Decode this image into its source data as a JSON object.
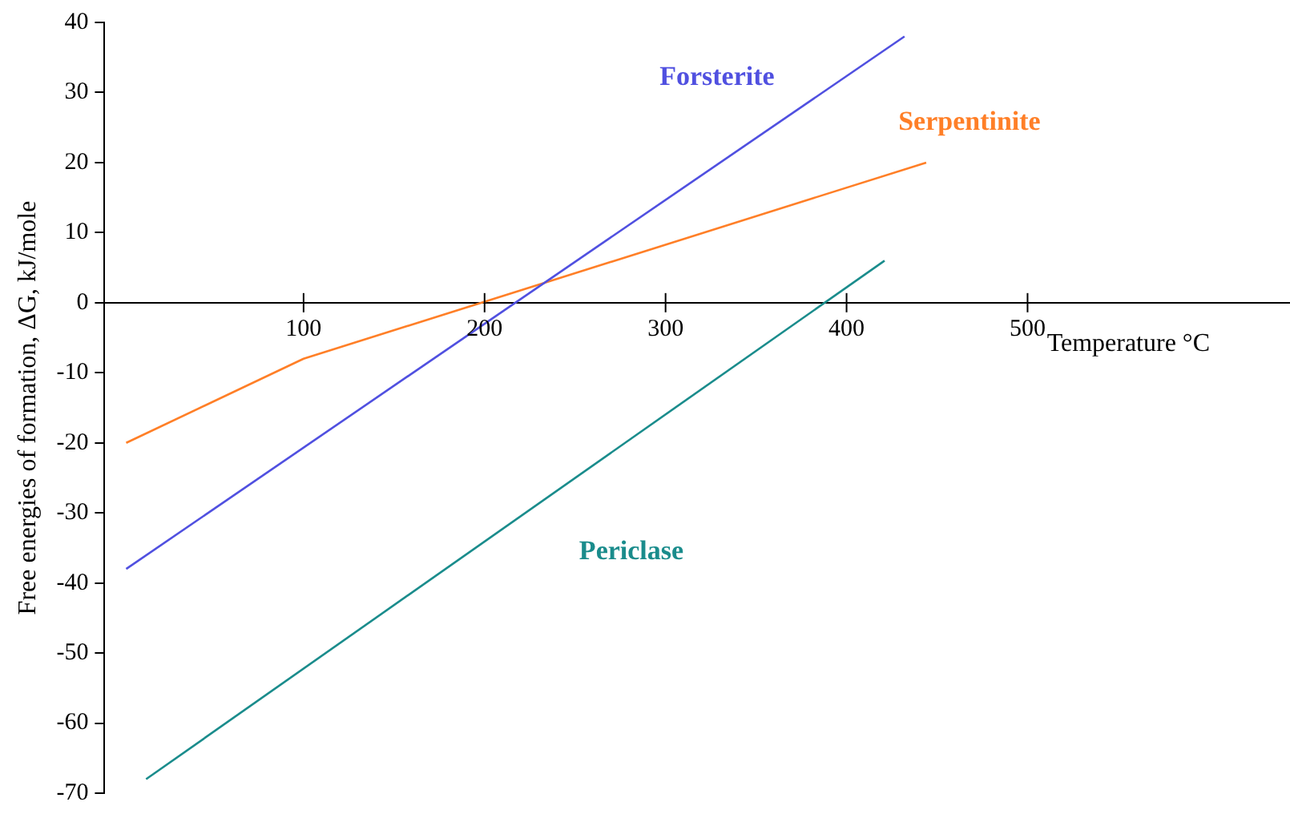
{
  "chart_data": {
    "type": "line",
    "xlabel": "Temperature °C",
    "ylabel": "Free energies of formation, ΔG, kJ/mole",
    "xlim": [
      -10,
      645
    ],
    "xticks": [
      100,
      200,
      300,
      400,
      500
    ],
    "ylim": [
      -70,
      40
    ],
    "yticks": [
      -70,
      -60,
      -50,
      -40,
      -30,
      -20,
      -10,
      0,
      10,
      20,
      30,
      40
    ],
    "series": [
      {
        "name": "Forsterite",
        "color": "#5050e0",
        "x": [
          2,
          432
        ],
        "values": [
          -38,
          38
        ]
      },
      {
        "name": "Serpentinite",
        "color": "#ff7f27",
        "x": [
          2,
          100,
          444
        ],
        "values": [
          -20,
          -8,
          20
        ]
      },
      {
        "name": "Periclase",
        "color": "#1a8c8c",
        "x": [
          13,
          421
        ],
        "values": [
          -68,
          6
        ]
      }
    ]
  }
}
